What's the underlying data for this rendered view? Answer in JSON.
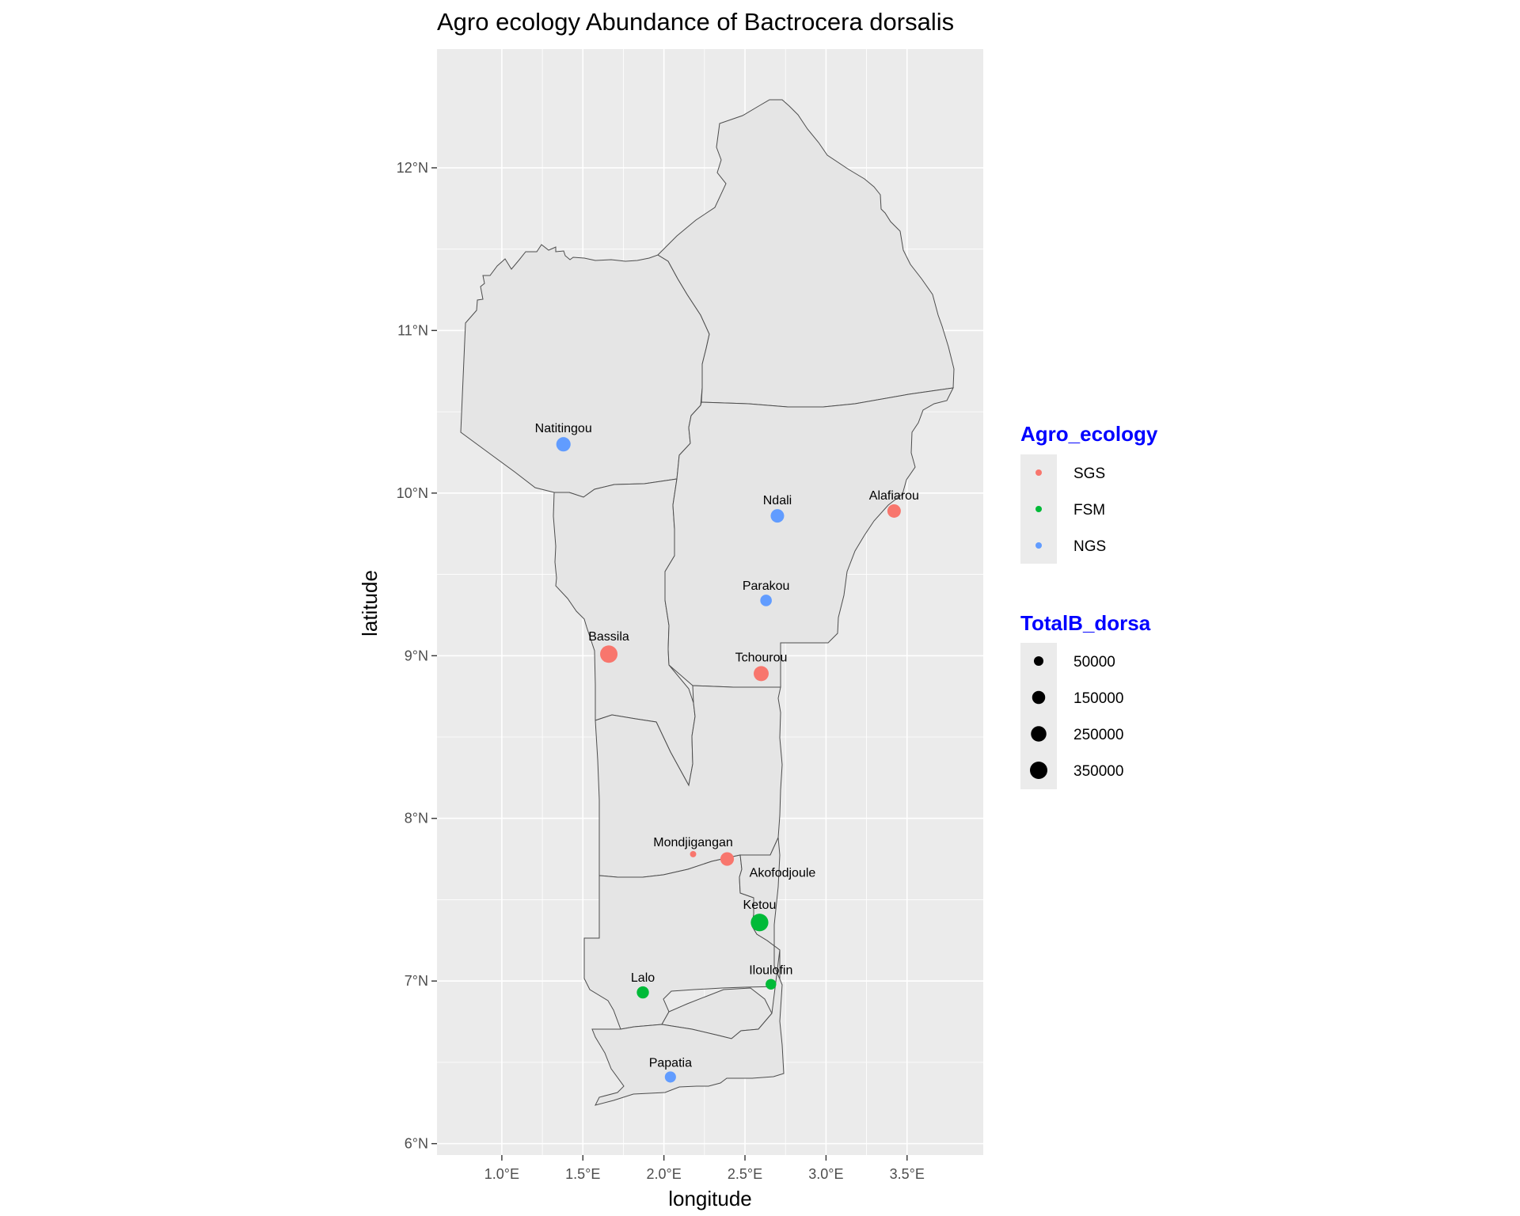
{
  "map": {
    "title": "Agro ecology Abundance of Bactrocera dorsalis",
    "xlabel": "longitude",
    "ylabel": "latitude",
    "background_color": "#ebebeb",
    "grid_color": "#ffffff",
    "region_fill": "#e5e5e5",
    "region_stroke": "#4d4d4d",
    "x_ticks": [
      {
        "value": 1.0,
        "label": "1.0°E"
      },
      {
        "value": 1.5,
        "label": "1.5°E"
      },
      {
        "value": 2.0,
        "label": "2.0°E"
      },
      {
        "value": 2.5,
        "label": "2.5°E"
      },
      {
        "value": 3.0,
        "label": "3.0°E"
      },
      {
        "value": 3.5,
        "label": "3.5°E"
      }
    ],
    "y_ticks": [
      {
        "value": 6,
        "label": "6°N"
      },
      {
        "value": 7,
        "label": "7°N"
      },
      {
        "value": 8,
        "label": "8°N"
      },
      {
        "value": 9,
        "label": "9°N"
      },
      {
        "value": 10,
        "label": "10°N"
      },
      {
        "value": 11,
        "label": "11°N"
      },
      {
        "value": 12,
        "label": "12°N"
      }
    ],
    "xlim": [
      0.6,
      3.97
    ],
    "ylim": [
      5.93,
      12.73
    ]
  },
  "chart_data": {
    "type": "scatter",
    "title": "Agro ecology Abundance of Bactrocera dorsalis",
    "xlabel": "longitude",
    "ylabel": "latitude",
    "xlim": [
      0.6,
      3.97
    ],
    "ylim": [
      5.93,
      12.73
    ],
    "color_legend": {
      "title": "Agro_ecology",
      "title_color": "#0000ff",
      "entries": [
        {
          "label": "SGS",
          "color": "#f8766d"
        },
        {
          "label": "FSM",
          "color": "#00ba38"
        },
        {
          "label": "NGS",
          "color": "#619cff"
        }
      ]
    },
    "size_legend": {
      "title": "TotalB_dorsa",
      "title_color": "#0000ff",
      "entries": [
        {
          "label": "50000",
          "value": 50000
        },
        {
          "label": "150000",
          "value": 150000
        },
        {
          "label": "250000",
          "value": 250000
        },
        {
          "label": "350000",
          "value": 350000
        }
      ]
    },
    "points": [
      {
        "name": "Natitingou",
        "lon": 1.38,
        "lat": 10.3,
        "group": "NGS",
        "total": 200000
      },
      {
        "name": "Ndali",
        "lon": 2.7,
        "lat": 9.86,
        "group": "NGS",
        "total": 165000
      },
      {
        "name": "Alafiarou",
        "lon": 3.42,
        "lat": 9.89,
        "group": "SGS",
        "total": 165000
      },
      {
        "name": "Parakou",
        "lon": 2.63,
        "lat": 9.34,
        "group": "NGS",
        "total": 100000
      },
      {
        "name": "Bassila",
        "lon": 1.66,
        "lat": 9.01,
        "group": "SGS",
        "total": 350000
      },
      {
        "name": "Tchourou",
        "lon": 2.6,
        "lat": 8.89,
        "group": "SGS",
        "total": 230000
      },
      {
        "name": "Mondjigangan",
        "lon": 2.18,
        "lat": 7.78,
        "group": "SGS",
        "total": 5000
      },
      {
        "name": "Akofodjoule",
        "lon": 2.39,
        "lat": 7.75,
        "group": "SGS",
        "total": 170000
      },
      {
        "name": "Ketou",
        "lon": 2.59,
        "lat": 7.36,
        "group": "FSM",
        "total": 360000
      },
      {
        "name": "Iloulofin",
        "lon": 2.66,
        "lat": 6.98,
        "group": "FSM",
        "total": 75000
      },
      {
        "name": "Lalo",
        "lon": 1.87,
        "lat": 6.93,
        "group": "FSM",
        "total": 120000
      },
      {
        "name": "Papatia",
        "lon": 2.04,
        "lat": 6.41,
        "group": "NGS",
        "total": 90000
      }
    ]
  }
}
